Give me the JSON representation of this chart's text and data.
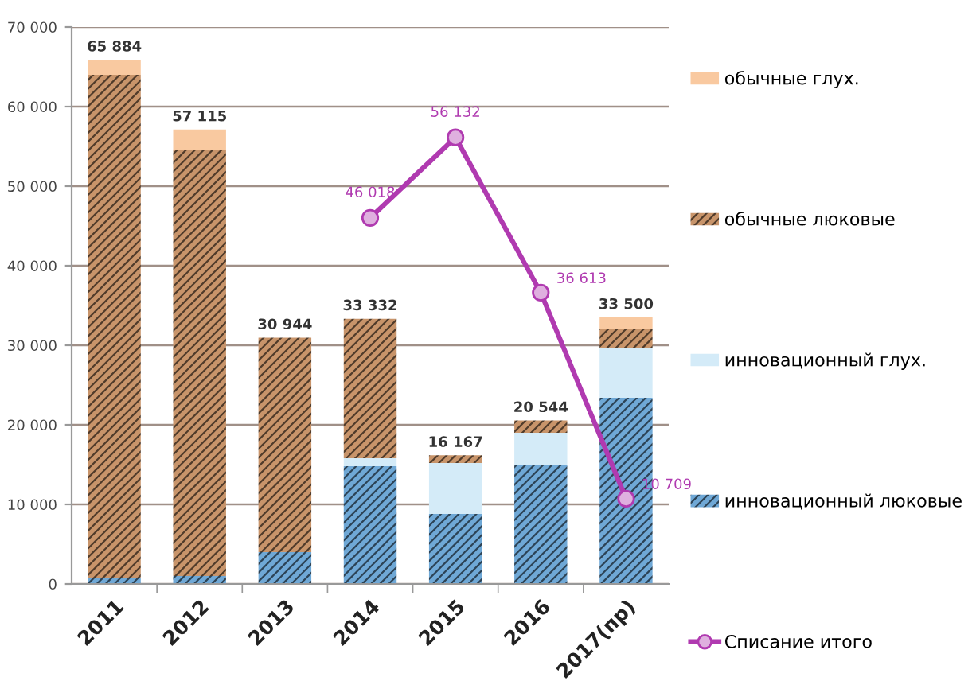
{
  "chart_data": {
    "type": "bar",
    "stacked": true,
    "categories": [
      "2011",
      "2012",
      "2013",
      "2014",
      "2015",
      "2016",
      "2017(пр)"
    ],
    "series": [
      {
        "name": "инновационный люковые",
        "color": "#6fa8d6",
        "values": [
          800,
          1000,
          4000,
          14800,
          8800,
          15000,
          23400
        ]
      },
      {
        "name": "инновационный глух.",
        "color": "#d4ebf8",
        "values": [
          0,
          0,
          0,
          1000,
          6400,
          4000,
          6300
        ]
      },
      {
        "name": "обычные люковые",
        "color": "#c8946a",
        "values": [
          63200,
          53600,
          26944,
          17532,
          967,
          1544,
          2400
        ]
      },
      {
        "name": "обычные глух.",
        "color": "#f9c9a0",
        "values": [
          1884,
          2515,
          0,
          0,
          0,
          0,
          1400
        ]
      },
      {
        "name": "Списание итого",
        "type": "line",
        "color": "#b03ab0",
        "values": [
          null,
          null,
          null,
          46018,
          56132,
          36613,
          10709
        ],
        "value_labels": [
          null,
          null,
          null,
          "46 018",
          "56 132",
          "36 613",
          "10 709"
        ]
      }
    ],
    "totals": [
      "65 884",
      "57 115",
      "30 944",
      "33 332",
      "16 167",
      "20 544",
      "33 500"
    ],
    "ylim": [
      0,
      70000
    ],
    "yticks": [
      0,
      {
        "value": 10000,
        "label": "10 000"
      },
      {
        "value": 20000,
        "label": "20 000"
      },
      {
        "value": 30000,
        "label": "30 000"
      },
      {
        "value": 40000,
        "label": "40 000"
      },
      {
        "value": 50000,
        "label": "50 000"
      },
      {
        "value": 60000,
        "label": "60 000"
      },
      {
        "value": 70000,
        "label": "70 000"
      }
    ],
    "grid": "y",
    "legend": "right",
    "marker": "circle"
  }
}
